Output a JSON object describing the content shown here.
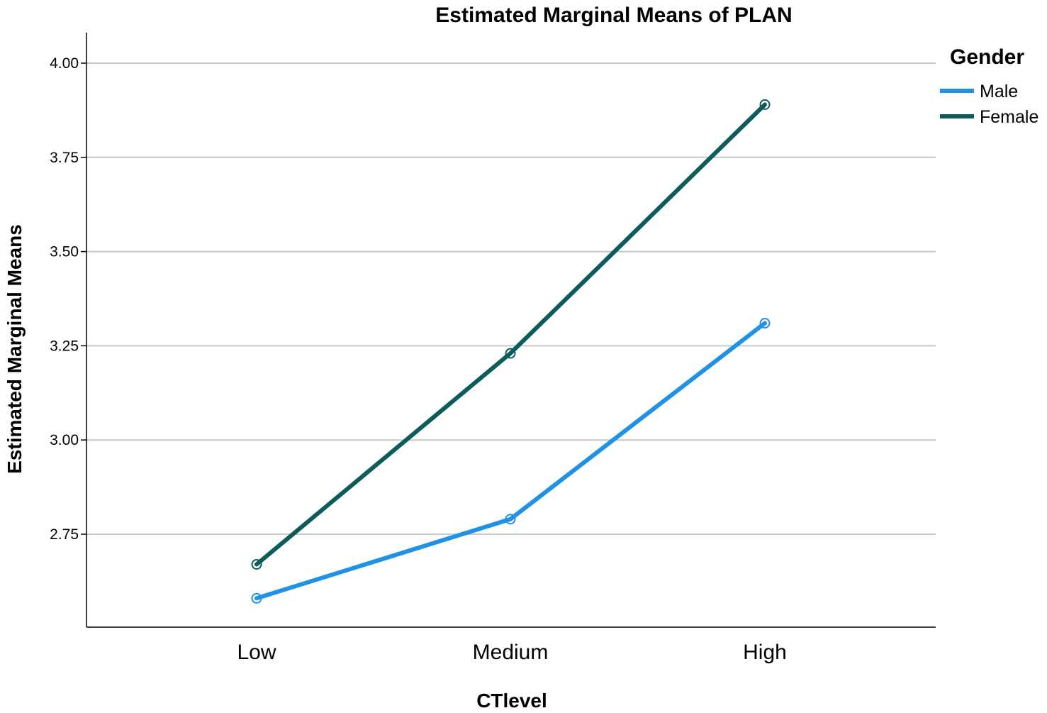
{
  "chart_data": {
    "type": "line",
    "title": "Estimated Marginal Means of PLAN",
    "xlabel": "CTlevel",
    "ylabel": "Estimated Marginal Means",
    "categories": [
      "Low",
      "Medium",
      "High"
    ],
    "yticks": [
      "2.75",
      "3.00",
      "3.25",
      "3.50",
      "3.75",
      "4.00"
    ],
    "ytick_values": [
      2.75,
      3.0,
      3.25,
      3.5,
      3.75,
      4.0
    ],
    "ylim": [
      2.5,
      4.08
    ],
    "grid": true,
    "legend": {
      "title": "Gender",
      "placement": "top-right"
    },
    "series": [
      {
        "name": "Male",
        "values": [
          2.58,
          2.79,
          3.31
        ],
        "color": "#1f91e6"
      },
      {
        "name": "Female",
        "values": [
          2.67,
          3.23,
          3.89
        ],
        "color": "#0d5c5c"
      }
    ]
  }
}
